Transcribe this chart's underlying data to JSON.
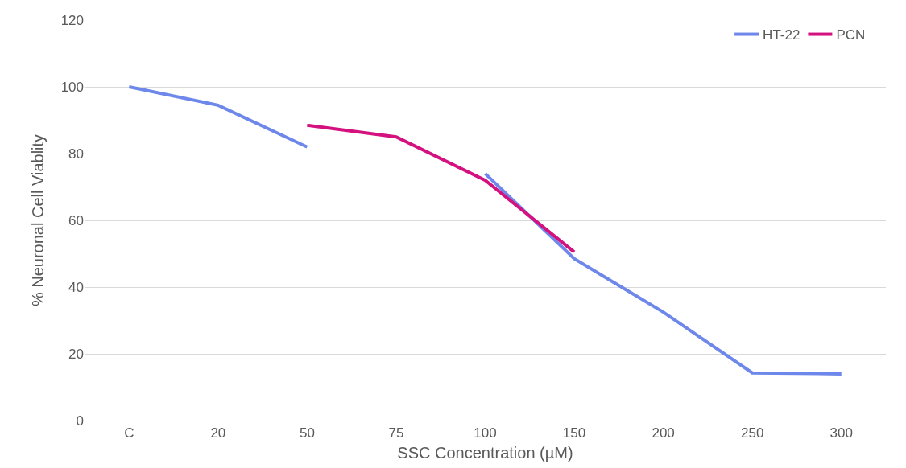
{
  "chart_data": {
    "type": "line",
    "xlabel": "SSC Concentration (µM)",
    "ylabel": "% Neuronal Cell Viablity",
    "categories": [
      "C",
      "20",
      "50",
      "75",
      "100",
      "150",
      "200",
      "250",
      "300"
    ],
    "series": [
      {
        "name": "HT-22",
        "color": "#6e87ea",
        "values": [
          100,
          94.5,
          82,
          null,
          74,
          48.5,
          32.5,
          14.3,
          14
        ]
      },
      {
        "name": "PCN",
        "color": "#d4127f",
        "values": [
          null,
          null,
          88.5,
          85,
          72,
          50.5,
          null,
          null,
          null
        ]
      }
    ],
    "ylim": [
      0,
      120
    ],
    "yticks": [
      0,
      20,
      40,
      60,
      80,
      100,
      120
    ],
    "grid": "y",
    "legend": "top right",
    "marker": "none",
    "line_style": "solid"
  }
}
